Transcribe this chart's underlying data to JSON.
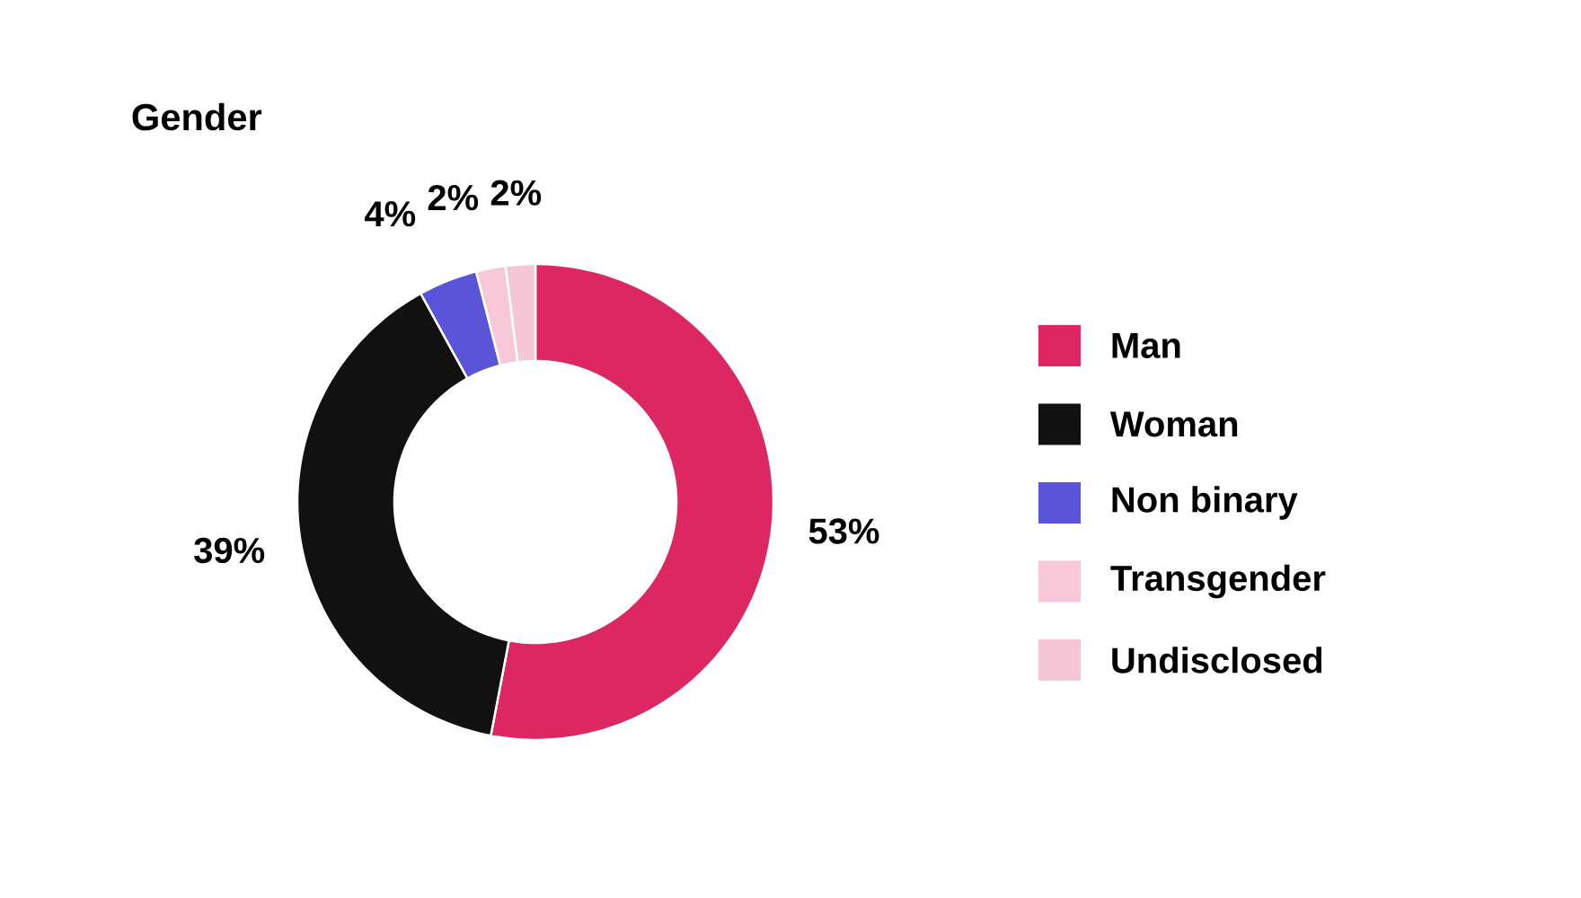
{
  "chart_data": {
    "type": "donut",
    "title": "Gender",
    "categories": [
      "Man",
      "Woman",
      "Non binary",
      "Transgender",
      "Undisclosed"
    ],
    "values": [
      53,
      39,
      4,
      2,
      2
    ],
    "value_labels": [
      "53%",
      "39%",
      "4%",
      "2%",
      "2%"
    ],
    "colors": [
      "#dc2762",
      "#111111",
      "#5a55d8",
      "#f7c8d8",
      "#f4c6d6"
    ],
    "legend": "right"
  }
}
